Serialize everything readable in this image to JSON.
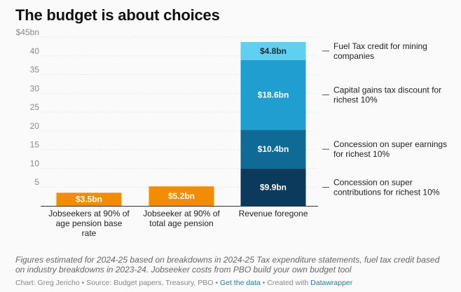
{
  "title": "The budget is about choices",
  "chart_data": {
    "type": "bar",
    "stacked": true,
    "title": "The budget is about choices",
    "ylim": [
      0,
      45
    ],
    "yticks": [
      {
        "value": 45,
        "label": "$45bn"
      },
      {
        "value": 40,
        "label": "40"
      },
      {
        "value": 35,
        "label": "35"
      },
      {
        "value": 30,
        "label": "30"
      },
      {
        "value": 25,
        "label": "25"
      },
      {
        "value": 20,
        "label": "20"
      },
      {
        "value": 15,
        "label": "15"
      },
      {
        "value": 10,
        "label": "10"
      },
      {
        "value": 5,
        "label": "5"
      }
    ],
    "categories": [
      [
        "Jobseekers at 90% of",
        "age pension base",
        "rate"
      ],
      [
        "Jobseeker at 90% of",
        "total age pension"
      ],
      [
        "Revenue foregone"
      ]
    ],
    "bars": [
      {
        "segments": [
          {
            "value": 3.5,
            "label": "$3.5bn",
            "color": "#f28c00",
            "text_color": "#ffffff"
          }
        ]
      },
      {
        "segments": [
          {
            "value": 5.2,
            "label": "$5.2bn",
            "color": "#f28c00",
            "text_color": "#ffffff"
          }
        ]
      },
      {
        "segments": [
          {
            "value": 9.9,
            "label": "$9.9bn",
            "color": "#0b3a5c",
            "text_color": "#ffffff",
            "annotation": [
              "Concession on super",
              "contributions for richest 10%"
            ]
          },
          {
            "value": 10.4,
            "label": "$10.4bn",
            "color": "#0f6a96",
            "text_color": "#ffffff",
            "annotation": [
              "Concession on super earnings",
              "for richest 10%"
            ]
          },
          {
            "value": 18.6,
            "label": "$18.6bn",
            "color": "#1f9fd0",
            "text_color": "#ffffff",
            "annotation": [
              "Capital gains tax discount for",
              "richest 10%"
            ]
          },
          {
            "value": 4.8,
            "label": "$4.8bn",
            "color": "#5fcff2",
            "text_color": "#1a2e3a",
            "annotation": [
              "Fuel Tax credit for mining",
              "companies"
            ]
          }
        ]
      }
    ]
  },
  "notes": "Figures estimated for 2024-25 based on breakdowns in 2024-25 Tax expenditure statements, fuel tax credit based on industry breakdowns in 2023-24. Jobseeker costs from PBO build your own budget tool",
  "footer": {
    "prefix": "Chart: Greg Jericho • Source: Budget papers, Treasury, PBO • ",
    "get_data": "Get the data",
    "middle": " • Created with ",
    "created_with": "Datawrapper"
  }
}
